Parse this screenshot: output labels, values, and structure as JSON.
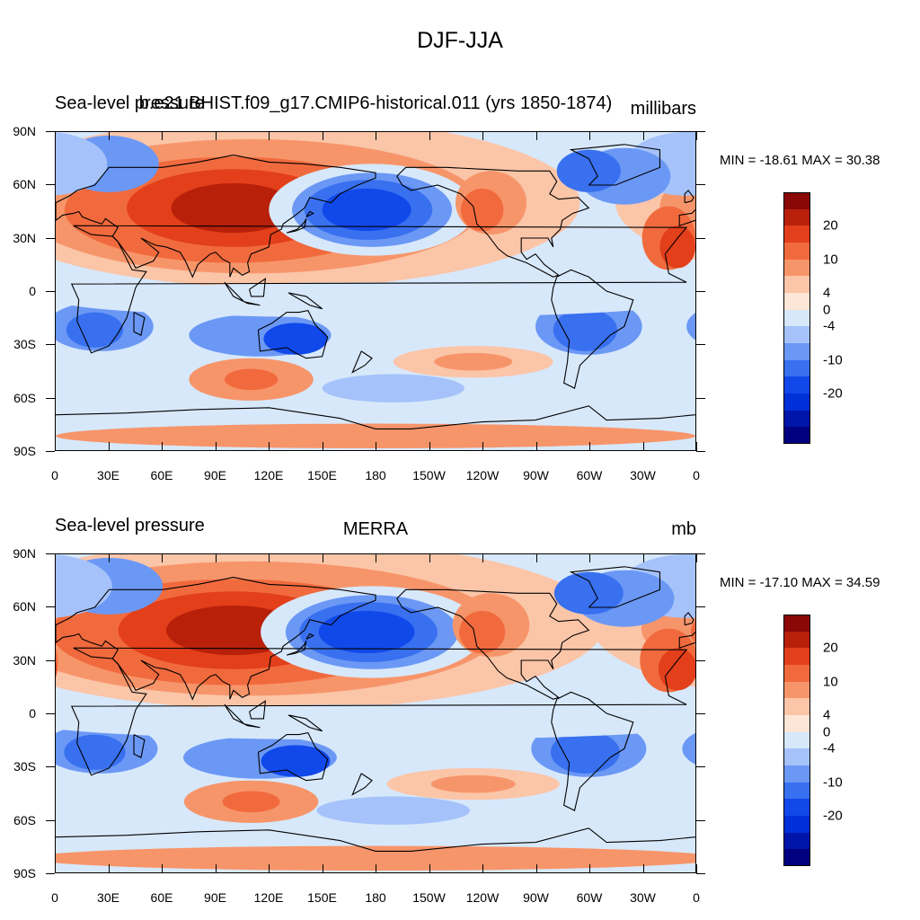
{
  "title": "DJF-JJA",
  "x_ticks": [
    "0",
    "30E",
    "60E",
    "90E",
    "120E",
    "150E",
    "180",
    "150W",
    "120W",
    "90W",
    "60W",
    "30W",
    "0"
  ],
  "y_ticks": [
    "90N",
    "60N",
    "30N",
    "0",
    "30S",
    "60S",
    "90S"
  ],
  "colors": {
    "levels": [
      "#000080",
      "#0015AA",
      "#0030D8",
      "#1048EA",
      "#3870F0",
      "#6B98F5",
      "#A5C3FA",
      "#D7E8FB",
      "#FDE6D5",
      "#FBC5A8",
      "#F7956A",
      "#F16A3D",
      "#E23F1A",
      "#B8200A",
      "#8A0808"
    ]
  },
  "panels": [
    {
      "id": "model",
      "left_label": "Sea-level pressure",
      "center_label": "b.e21.BHIST.f09_g17.CMIP6-historical.011 (yrs 1850-1874)",
      "right_label": "millibars",
      "stats": "MIN = -18.61 MAX =  30.38",
      "colorbar_labels": [
        "20",
        "10",
        "4",
        "0",
        "-4",
        "-10",
        "-20"
      ],
      "min": -18.61,
      "max": 30.38
    },
    {
      "id": "obs",
      "left_label": "Sea-level pressure",
      "center_label": "MERRA",
      "right_label": "mb",
      "stats": "MIN = -17.10 MAX =  34.59",
      "colorbar_labels": [
        "20",
        "10",
        "4",
        "0",
        "-4",
        "-10",
        "-20"
      ],
      "min": -17.1,
      "max": 34.59
    }
  ]
}
